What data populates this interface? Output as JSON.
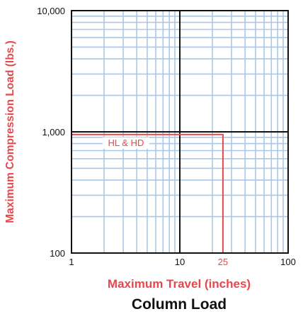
{
  "chart_data": {
    "type": "line",
    "title": "Column Load",
    "xlabel": "Maximum Travel (inches)",
    "ylabel": "Maximum Compression Load (lbs.)",
    "x_scale": "log",
    "y_scale": "log",
    "xlim": [
      1,
      100
    ],
    "ylim": [
      100,
      10000
    ],
    "grid": true,
    "x_ticks": [
      {
        "value": 1,
        "label": "1",
        "highlight": false
      },
      {
        "value": 10,
        "label": "10",
        "highlight": false
      },
      {
        "value": 25,
        "label": "25",
        "highlight": true
      },
      {
        "value": 100,
        "label": "100",
        "highlight": false
      }
    ],
    "y_ticks": [
      {
        "value": 100,
        "label": "100"
      },
      {
        "value": 1000,
        "label": "1,000"
      },
      {
        "value": 10000,
        "label": "10,000"
      }
    ],
    "series": [
      {
        "name": "HL & HD",
        "points": [
          [
            1,
            950
          ],
          [
            25,
            950
          ],
          [
            25,
            100
          ]
        ]
      }
    ],
    "colors": {
      "accent": "#e8474c",
      "grid": "#aac8e6",
      "frame": "#111111",
      "text": "#111111"
    }
  }
}
